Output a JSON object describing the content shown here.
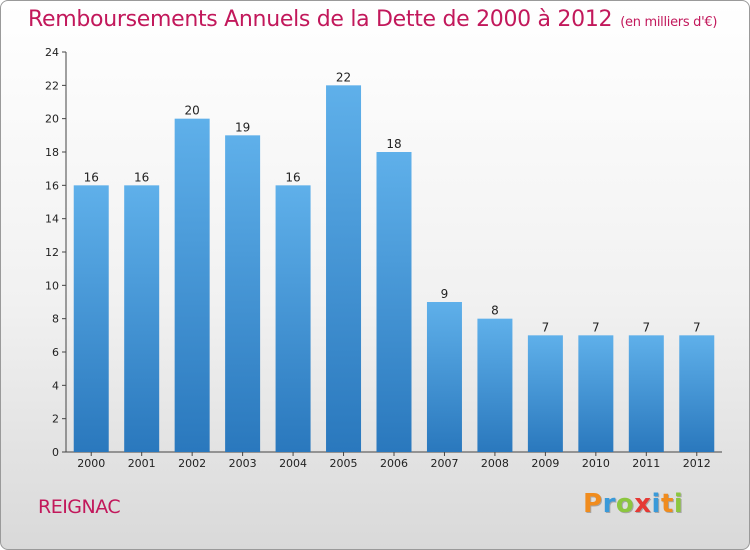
{
  "title": "Remboursements Annuels de la Dette de 2000 à 2012",
  "subtitle": "(en milliers d'€)",
  "town": "REIGNAC",
  "logo": {
    "letters": [
      "P",
      "r",
      "o",
      "x",
      "i",
      "t",
      "i"
    ],
    "colors": [
      "#f08c1e",
      "#3a9ad9",
      "#8cc63f",
      "#e53935",
      "#3a9ad9",
      "#f08c1e",
      "#8cc63f"
    ]
  },
  "colors": {
    "bar_top": "#5fb0ea",
    "bar_bottom": "#2a78bd",
    "accent": "#c2185b"
  },
  "chart_data": {
    "type": "bar",
    "categories": [
      "2000",
      "2001",
      "2002",
      "2003",
      "2004",
      "2005",
      "2006",
      "2007",
      "2008",
      "2009",
      "2010",
      "2011",
      "2012"
    ],
    "values": [
      16,
      16,
      20,
      19,
      16,
      22,
      18,
      9,
      8,
      7,
      7,
      7,
      7
    ],
    "data_labels": [
      "16",
      "16",
      "20",
      "19",
      "16",
      "22",
      "18",
      "9",
      "8",
      "7",
      "7",
      "7",
      "7"
    ],
    "title": "Remboursements Annuels de la Dette de 2000 à 2012",
    "subtitle": "(en milliers d'€)",
    "xlabel": "",
    "ylabel": "",
    "ylim": [
      0,
      24
    ],
    "yticks": [
      "0",
      "2",
      "4",
      "6",
      "8",
      "10",
      "12",
      "14",
      "16",
      "18",
      "20",
      "22",
      "24"
    ],
    "grid": false,
    "legend": "none"
  }
}
